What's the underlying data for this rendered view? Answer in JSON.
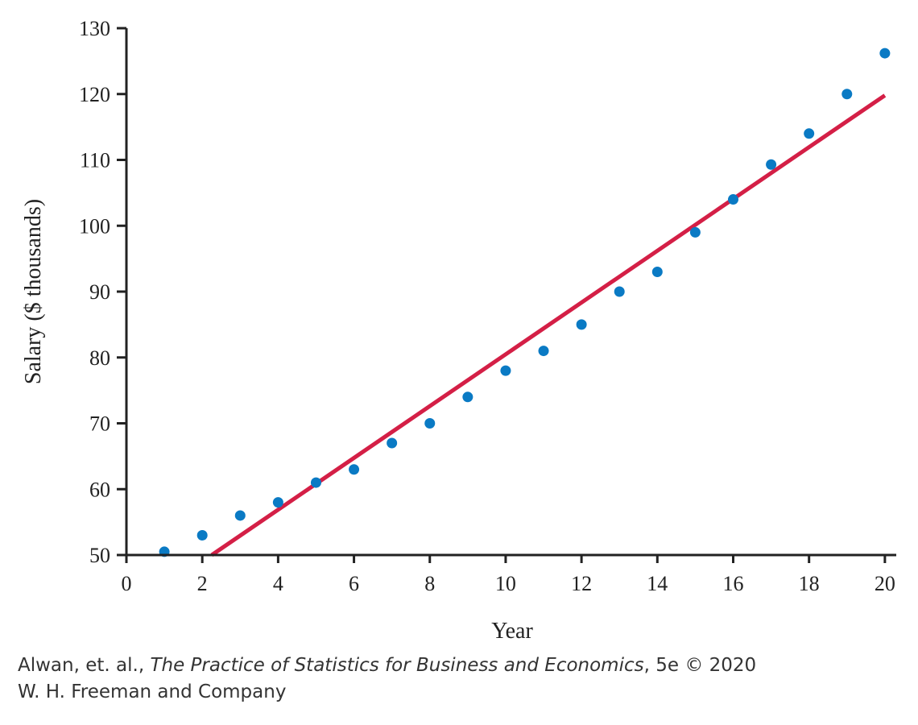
{
  "chart_data": {
    "type": "scatter",
    "title": "",
    "xlabel": "Year",
    "ylabel": "Salary ($ thousands)",
    "xlim": [
      0,
      20.3
    ],
    "ylim": [
      50,
      130
    ],
    "xticks": [
      0,
      2,
      4,
      6,
      8,
      10,
      12,
      14,
      16,
      18,
      20
    ],
    "yticks": [
      50,
      60,
      70,
      80,
      90,
      100,
      110,
      120,
      130
    ],
    "grid": false,
    "colors": {
      "points": "#0a7ac4",
      "fit_line": "#d41f46",
      "axes": "#222222"
    },
    "series": [
      {
        "x": [
          1,
          2,
          3,
          4,
          5,
          6,
          7,
          8,
          9,
          10,
          11,
          12,
          13,
          14,
          15,
          16,
          17,
          18,
          19,
          20
        ],
        "y": [
          50.5,
          53,
          56,
          58,
          61,
          63,
          67,
          70,
          74,
          78,
          81,
          85,
          90,
          93,
          99,
          104,
          109.3,
          114,
          120,
          126.2
        ]
      }
    ],
    "fit_line": {
      "x": [
        2.25,
        20
      ],
      "y": [
        50,
        119.8
      ]
    }
  },
  "credit": {
    "authors": "Alwan, et. al., ",
    "book_title": "The Practice of Statistics for Business and Economics",
    "edition": ", 5e © 2020",
    "publisher": "W. H. Freeman and Company"
  }
}
